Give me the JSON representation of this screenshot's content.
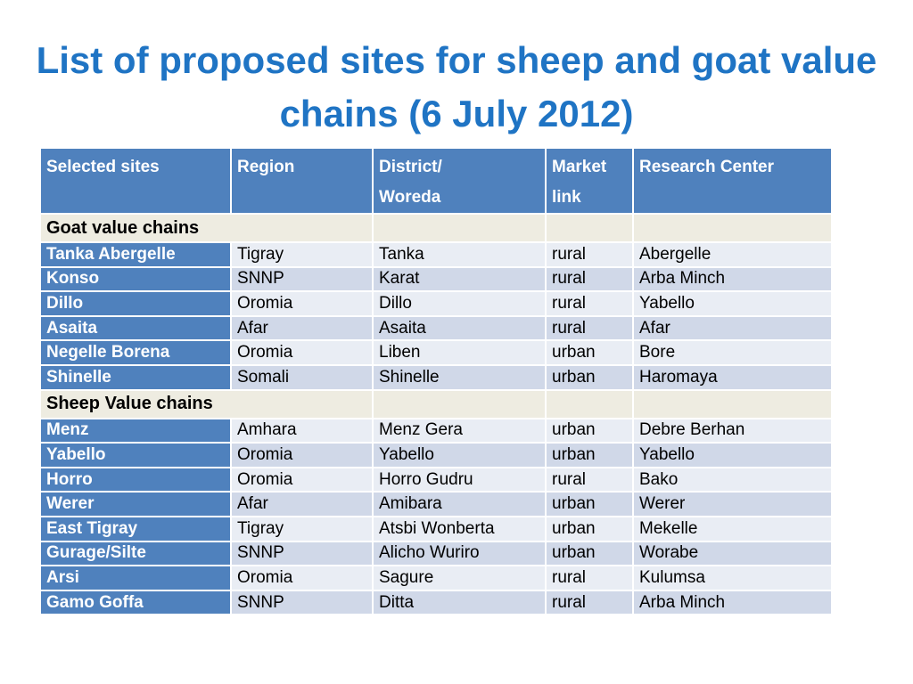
{
  "title": "List of proposed sites for sheep and goat value chains (6 July 2012)",
  "headers": {
    "site": "Selected sites",
    "region": "Region",
    "district_line1": "District/",
    "district_line2": "Woreda",
    "market_line1": "Market",
    "market_line2": "link",
    "research": "Research Center"
  },
  "groups": [
    {
      "label": "Goat value chains",
      "rows": [
        {
          "site": "Tanka Abergelle",
          "region": "Tigray",
          "district": "Tanka",
          "market": "rural",
          "research": "Abergelle"
        },
        {
          "site": "Konso",
          "region": "SNNP",
          "district": "Karat",
          "market": "rural",
          "research": "Arba Minch"
        },
        {
          "site": "Dillo",
          "region": "Oromia",
          "district": "Dillo",
          "market": "rural",
          "research": "Yabello"
        },
        {
          "site": "Asaita",
          "region": "Afar",
          "district": "Asaita",
          "market": "rural",
          "research": "Afar"
        },
        {
          "site": "Negelle Borena",
          "region": "Oromia",
          "district": "Liben",
          "market": "urban",
          "research": "Bore"
        },
        {
          "site": "Shinelle",
          "region": "Somali",
          "district": "Shinelle",
          "market": "urban",
          "research": "Haromaya"
        }
      ]
    },
    {
      "label": "Sheep Value chains",
      "rows": [
        {
          "site": "Menz",
          "region": "Amhara",
          "district": "Menz Gera",
          "market": "urban",
          "research": "Debre Berhan"
        },
        {
          "site": "Yabello",
          "region": "Oromia",
          "district": "Yabello",
          "market": "urban",
          "research": "Yabello"
        },
        {
          "site": "Horro",
          "region": "Oromia",
          "district": "Horro Gudru",
          "market": "rural",
          "research": "Bako"
        },
        {
          "site": "Werer",
          "region": "Afar",
          "district": "Amibara",
          "market": "urban",
          "research": "Werer"
        },
        {
          "site": "East Tigray",
          "region": "Tigray",
          "district": "Atsbi Wonberta",
          "market": "urban",
          "research": "Mekelle"
        },
        {
          "site": "Gurage/Silte",
          "region": "SNNP",
          "district": "Alicho Wuriro",
          "market": "urban",
          "research": "Worabe"
        },
        {
          "site": "Arsi",
          "region": "Oromia",
          "district": "Sagure",
          "market": "rural",
          "research": "Kulumsa"
        },
        {
          "site": "Gamo Goffa",
          "region": "SNNP",
          "district": "Ditta",
          "market": "rural",
          "research": "Arba Minch"
        }
      ]
    }
  ]
}
